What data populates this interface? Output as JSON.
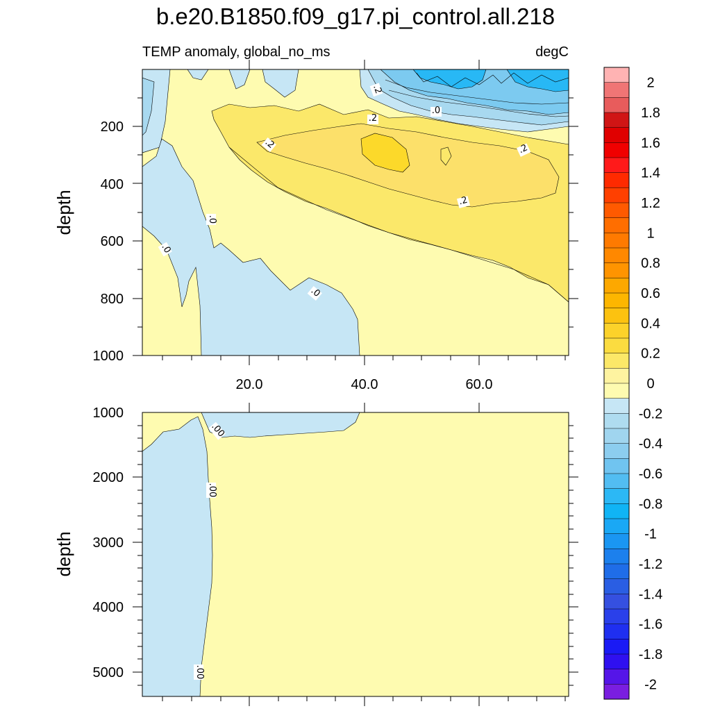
{
  "title": "b.e20.B1850.f09_g17.pi_control.all.218",
  "left_subtitle": "TEMP anomaly, global_no_ms",
  "right_subtitle": "degC",
  "colors": {
    "neg_0": "#c6e6f5",
    "neg_02": "#a8d9f0",
    "neg_04": "#7ccaf0",
    "neg_06": "#28b8f5",
    "pos_0": "#fefbb0",
    "pos_02": "#fbe86a",
    "pos_04": "#fcd92a"
  },
  "chart_data": [
    {
      "type": "contour",
      "panel": "upper",
      "xlabel": "",
      "ylabel": "depth",
      "xlim": [
        1,
        76
      ],
      "ylim": [
        1000,
        0
      ],
      "x_ticks": [
        "20.0",
        "40.0",
        "60.0"
      ],
      "y_ticks": [
        "200",
        "400",
        "600",
        "800",
        "1000"
      ],
      "contour_labels": [
        ".2",
        ".0",
        ".2",
        ".2",
        ".2",
        ".2",
        ".0",
        ".0",
        ".0"
      ],
      "regions": [
        {
          "range": "0 to 0.2",
          "area": "most of the panel"
        },
        {
          "range": "0.2 to 0.4",
          "area": "band x 18-76, depth 150-800"
        },
        {
          "range": "0.4 to 0.6",
          "area": "x 40-46, depth 230-330"
        },
        {
          "range": "-0.2 to 0",
          "area": "x 12-39, depth 0-1000"
        },
        {
          "range": "-0.6 to 0",
          "area": "x 40-76, depth 0-200"
        }
      ]
    },
    {
      "type": "contour",
      "panel": "lower",
      "xlabel": "",
      "ylabel": "depth",
      "xlim": [
        1,
        76
      ],
      "ylim": [
        1000,
        5400
      ],
      "x_ticks": [],
      "y_ticks": [
        "1000",
        "2000",
        "3000",
        "4000",
        "5000"
      ],
      "contour_labels": [
        ".00",
        ".00",
        ".00"
      ],
      "regions": [
        {
          "range": "-0.2 to 0",
          "area": "x 1-12, depth 1600-5400"
        },
        {
          "range": "-0.2 to 0",
          "area": "x 12-39, depth 1000-1400"
        },
        {
          "range": "0 to 0.2",
          "area": "rest of the panel"
        }
      ]
    }
  ],
  "colorbar": {
    "labels": [
      "2",
      "1.8",
      "1.6",
      "1.4",
      "1.2",
      "1",
      "0.8",
      "0.6",
      "0.4",
      "0.2",
      "0",
      "-0.2",
      "-0.4",
      "-0.6",
      "-0.8",
      "-1",
      "-1.2",
      "-1.4",
      "-1.6",
      "-1.8",
      "-2"
    ],
    "colors": [
      "#ffb3b3",
      "#f07575",
      "#e85c5c",
      "#d01515",
      "#e00000",
      "#f00000",
      "#ff1a1a",
      "#ff2a00",
      "#ff4000",
      "#ff5a00",
      "#ff6e00",
      "#ff7a00",
      "#ff8800",
      "#ff9400",
      "#fda800",
      "#fdb600",
      "#fcc210",
      "#fcd22a",
      "#fbdc40",
      "#fce868",
      "#fef3a0",
      "#fefbb0",
      "#c6e6f5",
      "#afdcf0",
      "#a0d5ef",
      "#8ccdef",
      "#70c4f0",
      "#52bdf2",
      "#2cb8f5",
      "#10b4f5",
      "#1aa8f5",
      "#1a96f2",
      "#1c80ed",
      "#1f6de8",
      "#2a5ee3",
      "#3550e0",
      "#2a40ea",
      "#1f2ff0",
      "#1a1af5",
      "#2f10f0",
      "#5515e8",
      "#7a1ee0"
    ]
  }
}
